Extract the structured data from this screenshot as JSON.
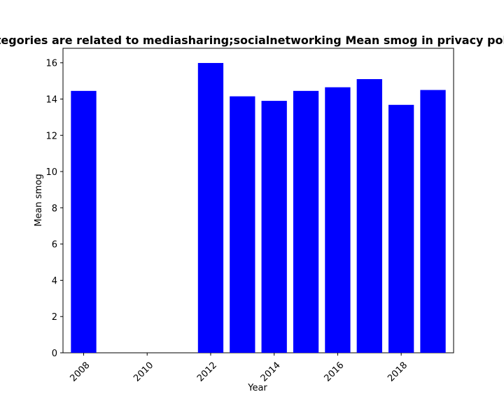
{
  "chart_data": {
    "type": "bar",
    "title": "Categories are related to mediasharing;socialnetworking Mean smog in privacy policies",
    "xlabel": "Year",
    "ylabel": "Mean smog",
    "x": [
      2008,
      2012,
      2013,
      2014,
      2015,
      2016,
      2017,
      2018,
      2019
    ],
    "values": [
      14.45,
      15.99,
      14.15,
      13.9,
      14.45,
      14.65,
      15.1,
      13.68,
      14.5
    ],
    "bar_color": "#0000ff",
    "xlim": [
      2007.35,
      2019.65
    ],
    "ylim": [
      0,
      16.8
    ],
    "xticks": [
      2008,
      2010,
      2012,
      2014,
      2016,
      2018
    ],
    "yticks": [
      0,
      2,
      4,
      6,
      8,
      10,
      12,
      14,
      16
    ],
    "grid": false,
    "legend": "none"
  }
}
